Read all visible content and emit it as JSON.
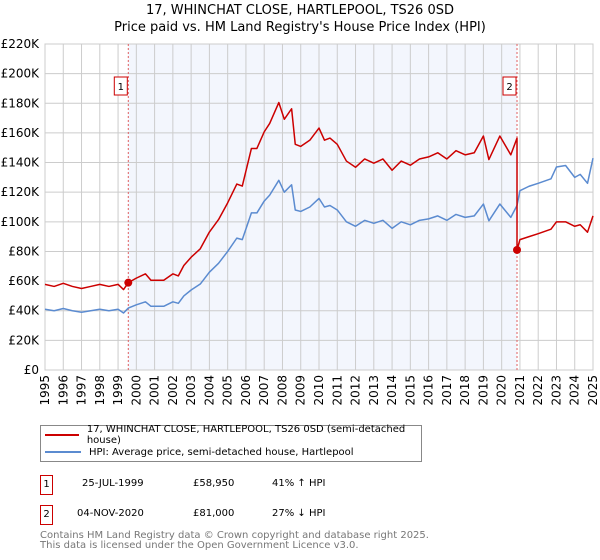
{
  "chart_data": {
    "type": "line",
    "title": "17, WHINCHAT CLOSE, HARTLEPOOL, TS26 0SD",
    "subtitle": "Price paid vs. HM Land Registry's House Price Index (HPI)",
    "xlim": [
      1995,
      2025
    ],
    "ylim": [
      0,
      220000
    ],
    "x_ticks": [
      "1995",
      "1996",
      "1997",
      "1998",
      "1999",
      "2000",
      "2001",
      "2002",
      "2003",
      "2004",
      "2005",
      "2006",
      "2007",
      "2008",
      "2009",
      "2010",
      "2011",
      "2012",
      "2013",
      "2014",
      "2015",
      "2016",
      "2017",
      "2018",
      "2019",
      "2020",
      "2021",
      "2022",
      "2023",
      "2024",
      "2025"
    ],
    "y_ticks": [
      {
        "value": 0,
        "label": "£0"
      },
      {
        "value": 20000,
        "label": "£20K"
      },
      {
        "value": 40000,
        "label": "£40K"
      },
      {
        "value": 60000,
        "label": "£60K"
      },
      {
        "value": 80000,
        "label": "£80K"
      },
      {
        "value": 100000,
        "label": "£100K"
      },
      {
        "value": 120000,
        "label": "£120K"
      },
      {
        "value": 140000,
        "label": "£140K"
      },
      {
        "value": 160000,
        "label": "£160K"
      },
      {
        "value": 180000,
        "label": "£180K"
      },
      {
        "value": 200000,
        "label": "£200K"
      },
      {
        "value": 220000,
        "label": "£220K"
      }
    ],
    "grid": true,
    "shaded_range": [
      1999.56,
      2020.84
    ],
    "series": [
      {
        "name": "17, WHINCHAT CLOSE, HARTLEPOOL, TS26 0SD (semi-detached house)",
        "color": "#cc0000",
        "x": [
          1995,
          1995.5,
          1996,
          1996.5,
          1997,
          1997.5,
          1998,
          1998.5,
          1999,
          1999.3,
          1999.56,
          2000,
          2000.5,
          2000.8,
          2001.5,
          2002,
          2002.3,
          2002.6,
          2003,
          2003.5,
          2004,
          2004.5,
          2005,
          2005.5,
          2005.8,
          2006.3,
          2006.6,
          2007,
          2007.3,
          2007.8,
          2008.1,
          2008.5,
          2008.7,
          2009,
          2009.5,
          2010,
          2010.3,
          2010.6,
          2011,
          2011.5,
          2012,
          2012.5,
          2013,
          2013.5,
          2014,
          2014.5,
          2015,
          2015.5,
          2016,
          2016.5,
          2017,
          2017.5,
          2018,
          2018.5,
          2019,
          2019.3,
          2019.9,
          2020.5,
          2020.84,
          2020.84,
          2021,
          2021.5,
          2022,
          2022.7,
          2023,
          2023.5,
          2024,
          2024.3,
          2024.7,
          2025
        ],
        "y": [
          57800,
          56400,
          58500,
          56400,
          55000,
          56400,
          57800,
          56400,
          57800,
          54300,
          58950,
          62000,
          64900,
          60600,
          60600,
          64900,
          63500,
          70500,
          76100,
          81800,
          93100,
          101500,
          112800,
          125500,
          124100,
          149500,
          149500,
          160700,
          166400,
          180500,
          169200,
          176300,
          152300,
          150900,
          155100,
          163300,
          155100,
          156500,
          152300,
          141000,
          136800,
          142400,
          139600,
          142400,
          134800,
          141000,
          138200,
          142400,
          143800,
          146600,
          142400,
          148000,
          145200,
          146600,
          157900,
          142000,
          157900,
          145200,
          156500,
          81000,
          88000,
          90000,
          92000,
          95000,
          100000,
          100000,
          97000,
          98000,
          93000,
          104000
        ]
      },
      {
        "name": "HPI: Average price, semi-detached house, Hartlepool",
        "color": "#5b8bd0",
        "x": [
          1995,
          1995.5,
          1996,
          1996.5,
          1997,
          1997.5,
          1998,
          1998.5,
          1999,
          1999.3,
          1999.56,
          2000,
          2000.5,
          2000.8,
          2001.5,
          2002,
          2002.3,
          2002.6,
          2003,
          2003.5,
          2004,
          2004.5,
          2005,
          2005.5,
          2005.8,
          2006.3,
          2006.6,
          2007,
          2007.3,
          2007.8,
          2008.1,
          2008.5,
          2008.7,
          2009,
          2009.5,
          2010,
          2010.3,
          2010.6,
          2011,
          2011.5,
          2012,
          2012.5,
          2013,
          2013.5,
          2014,
          2014.5,
          2015,
          2015.5,
          2016,
          2016.5,
          2017,
          2017.5,
          2018,
          2018.5,
          2019,
          2019.3,
          2019.9,
          2020.5,
          2020.84,
          2021,
          2021.5,
          2022,
          2022.7,
          2023,
          2023.5,
          2024,
          2024.3,
          2024.7,
          2025
        ],
        "y": [
          41000,
          40000,
          41500,
          40000,
          39000,
          40000,
          41000,
          40000,
          41000,
          38500,
          41800,
          44000,
          46000,
          43000,
          43000,
          46000,
          45000,
          50000,
          54000,
          58000,
          66000,
          72000,
          80000,
          89000,
          88000,
          106000,
          106000,
          114000,
          118000,
          128000,
          120000,
          125000,
          108000,
          107000,
          110000,
          115800,
          110000,
          111000,
          108000,
          100000,
          97000,
          101000,
          99000,
          101000,
          95600,
          100000,
          98000,
          101000,
          102000,
          104000,
          101000,
          105000,
          103000,
          104000,
          112000,
          100700,
          112000,
          103000,
          111000,
          121000,
          124000,
          126000,
          129000,
          137000,
          138000,
          130000,
          132000,
          126000,
          143000
        ]
      }
    ],
    "sales": [
      {
        "id": "1",
        "x": 1999.56,
        "price": 58950,
        "date": "25-JUL-1999",
        "price_label": "£58,950",
        "hpi_diff": "41% ↑ HPI"
      },
      {
        "id": "2",
        "x": 2020.84,
        "price": 81000,
        "date": "04-NOV-2020",
        "price_label": "£81,000",
        "hpi_diff": "27% ↓ HPI"
      }
    ],
    "legend_placement": "below"
  },
  "footer": {
    "line1": "Contains HM Land Registry data © Crown copyright and database right 2025.",
    "line2": "This data is licensed under the Open Government Licence v3.0."
  }
}
